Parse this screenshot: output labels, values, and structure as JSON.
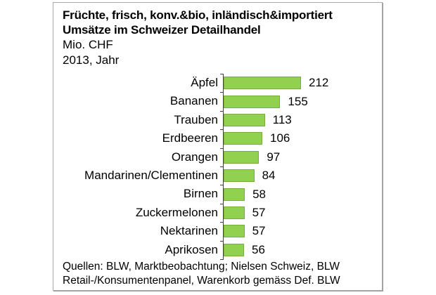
{
  "panel": {
    "title_line1": "Früchte, frisch, konv.&bio, inländisch&importiert",
    "title_line2": "Umsätze im Schweizer Detailhandel",
    "unit": "Mio. CHF",
    "period": "2013, Jahr",
    "footer_line1": "Quellen: BLW, Marktbeobachtung; Nielsen Schweiz, BLW",
    "footer_line2": "Retail-/Konsumentenpanel, Warenkorb gemäss Def. BLW"
  },
  "chart_data": {
    "type": "bar",
    "orientation": "horizontal",
    "title": "Früchte, frisch, konv.&bio, inländisch&importiert — Umsätze im Schweizer Detailhandel",
    "unit": "Mio. CHF",
    "period": "2013, Jahr",
    "categories": [
      "Äpfel",
      "Bananen",
      "Trauben",
      "Erdbeeren",
      "Orangen",
      "Mandarinen/Clementinen",
      "Birnen",
      "Zuckermelonen",
      "Nektarinen",
      "Aprikosen"
    ],
    "values": [
      212,
      155,
      113,
      106,
      97,
      84,
      58,
      57,
      57,
      56
    ],
    "value_labels_shown": true,
    "grid": false,
    "xlabel": "",
    "ylabel": "",
    "bar_color": "#92d050",
    "bar_border_color": "#74ae3c",
    "axis_color": "#404040"
  }
}
